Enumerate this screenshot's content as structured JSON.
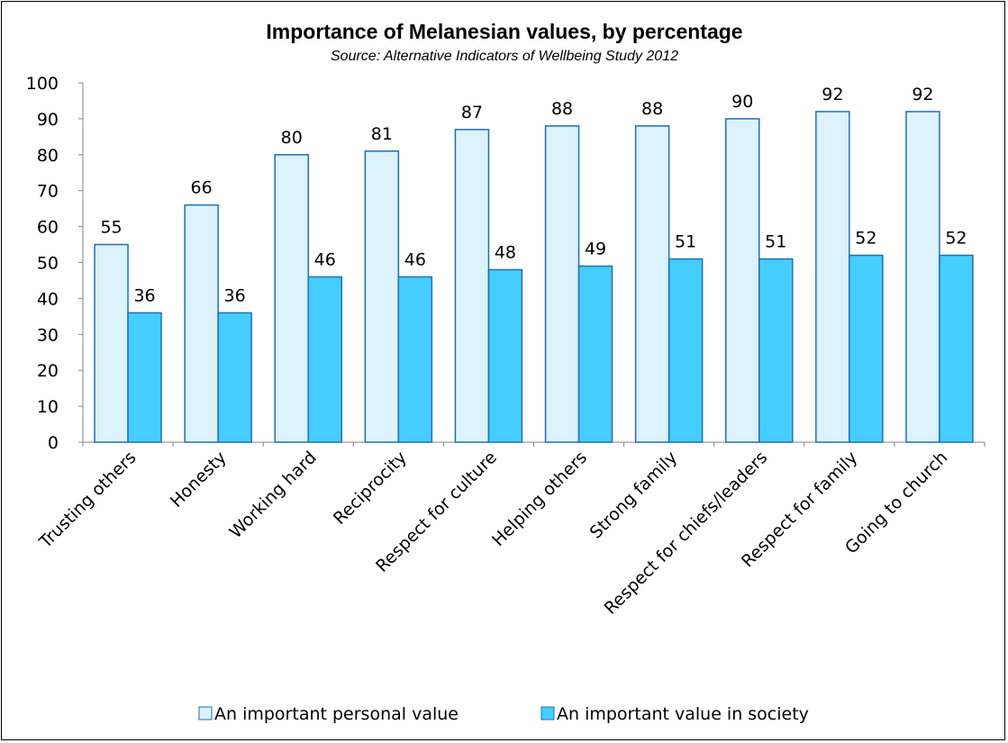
{
  "chart_data": {
    "type": "bar",
    "title": "Importance of Melanesian values, by percentage",
    "subtitle": "Source: Alternative Indicators of Wellbeing Study 2012",
    "categories": [
      "Trusting others",
      "Honesty",
      "Working hard",
      "Reciprocity",
      "Respect for culture",
      "Helping others",
      "Strong family",
      "Respect for chiefs/leaders",
      "Respect for family",
      "Going to church"
    ],
    "series": [
      {
        "name": "An important personal value",
        "values": [
          55,
          66,
          80,
          81,
          87,
          88,
          88,
          90,
          92,
          92
        ],
        "color": "#dcf3fd"
      },
      {
        "name": "An important value in society",
        "values": [
          36,
          36,
          46,
          46,
          48,
          49,
          51,
          51,
          52,
          52
        ],
        "color": "#45cdfd"
      }
    ],
    "bar_outline_color": "#1d6fb8",
    "ylim": [
      0,
      100
    ],
    "yticks": [
      0,
      10,
      20,
      30,
      40,
      50,
      60,
      70,
      80,
      90,
      100
    ],
    "grid": false,
    "legend_position": "bottom",
    "data_labels": true
  }
}
